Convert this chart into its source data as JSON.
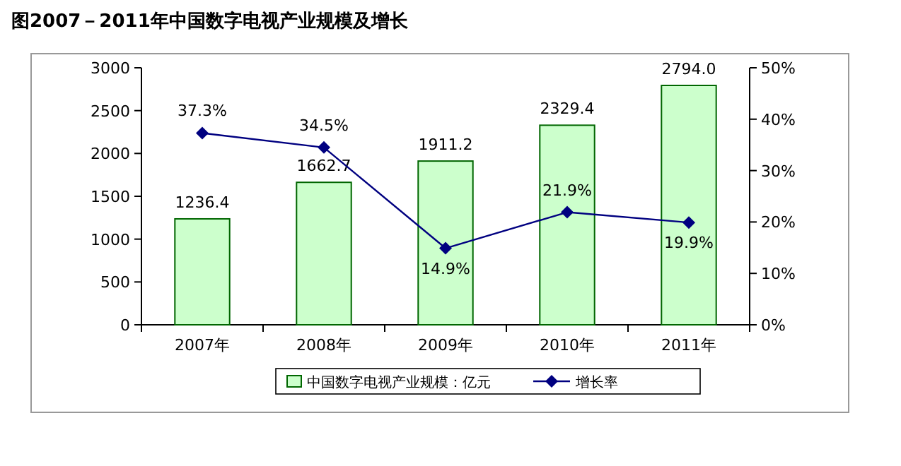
{
  "chart_data": {
    "type": "bar",
    "title": "图2007－2011年中国数字电视产业规模及增长",
    "categories": [
      "2007年",
      "2008年",
      "2009年",
      "2010年",
      "2011年"
    ],
    "series": [
      {
        "name": "中国数字电视产业规模：亿元",
        "color": "#ccffcc",
        "values": [
          1236.4,
          1662.7,
          1911.2,
          2329.4,
          2794.0
        ],
        "value_labels": [
          "1236.4",
          "1662.7",
          "1911.2",
          "2329.4",
          "2794.0"
        ]
      },
      {
        "name": "增长率",
        "type": "line",
        "axis": "y2",
        "color": "#000080",
        "marker": "diamond",
        "values": [
          37.3,
          34.5,
          14.9,
          21.9,
          19.9
        ],
        "value_labels": [
          "37.3%",
          "34.5%",
          "14.9%",
          "21.9%",
          "19.9%"
        ]
      }
    ],
    "ylim": [
      0,
      3000
    ],
    "yticks": [
      0,
      500,
      1000,
      1500,
      2000,
      2500,
      3000
    ],
    "y2lim": [
      0,
      50
    ],
    "y2ticks": [
      {
        "value": 0,
        "label": "0%"
      },
      {
        "value": 10,
        "label": "10%"
      },
      {
        "value": 20,
        "label": "20%"
      },
      {
        "value": 30,
        "label": "30%"
      },
      {
        "value": 40,
        "label": "40%"
      },
      {
        "value": 50,
        "label": "50%"
      }
    ],
    "legend": "bottom",
    "grid": false
  }
}
